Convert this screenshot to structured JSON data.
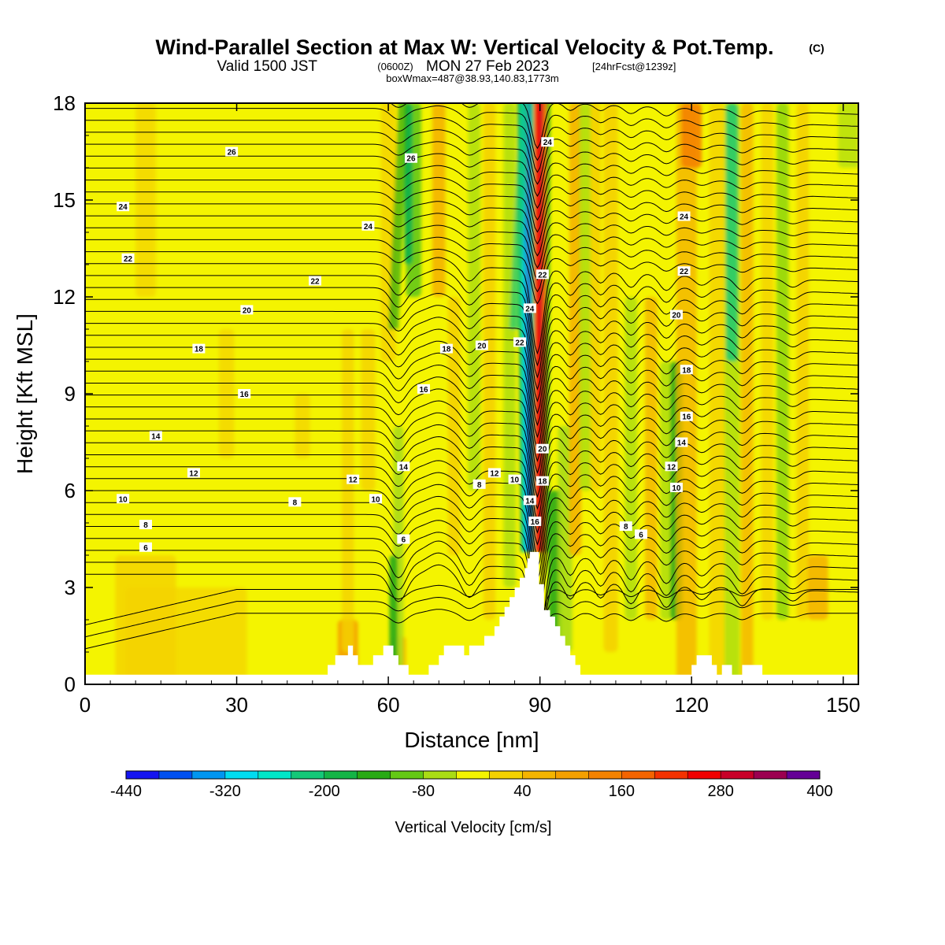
{
  "header": {
    "title": "Wind-Parallel Section at Max W: Vertical Velocity & Pot.Temp.",
    "copyright": "(C)",
    "valid_prefix": "Valid 1500 JST",
    "valid_zulu": "(0600Z)",
    "valid_date": "MON 27 Feb 2023",
    "forecast": "[24hrFcst@1239z]",
    "boxwmax": "boxWmax=487@38.93,140.83,1773m"
  },
  "colors": {
    "background_field": "#f4f400",
    "terrain": "#ffffff",
    "contour": "#000000"
  },
  "chart_data": {
    "type": "heatmap",
    "xlabel": "Distance [nm]",
    "ylabel": "Height [Kft MSL]",
    "xlim": [
      0,
      153
    ],
    "ylim": [
      0,
      18
    ],
    "x_ticks": [
      0,
      30,
      60,
      90,
      120,
      150
    ],
    "x_tick_labels": [
      "0",
      "30",
      "60",
      "90",
      "120",
      "150"
    ],
    "y_ticks": [
      0,
      3,
      6,
      9,
      12,
      15,
      18
    ],
    "y_tick_labels": [
      "0",
      "3",
      "6",
      "9",
      "12",
      "15",
      "18"
    ],
    "colorbar": {
      "title": "Vertical Velocity [cm/s]",
      "min": -440,
      "max": 400,
      "step": 40,
      "labels": [
        "-440",
        "-320",
        "-200",
        "-80",
        "40",
        "160",
        "280",
        "400"
      ],
      "colors": [
        "#1414f0",
        "#0050f0",
        "#0096f0",
        "#00dcf0",
        "#00e6c8",
        "#14c878",
        "#14b446",
        "#28aa14",
        "#64c814",
        "#aadc14",
        "#f4f400",
        "#f4d200",
        "#f4b400",
        "#f4a000",
        "#f48200",
        "#f46400",
        "#f43200",
        "#f00000",
        "#c80028",
        "#9b0050",
        "#640096"
      ]
    },
    "contour_variable": "Potential temperature",
    "contour_labels": [
      {
        "text": "26",
        "x": 29,
        "y": 16.5
      },
      {
        "text": "24",
        "x": 7.5,
        "y": 14.8
      },
      {
        "text": "22",
        "x": 8.5,
        "y": 13.2
      },
      {
        "text": "20",
        "x": 32,
        "y": 11.6
      },
      {
        "text": "18",
        "x": 22.5,
        "y": 10.4
      },
      {
        "text": "16",
        "x": 31.5,
        "y": 9.0
      },
      {
        "text": "14",
        "x": 14,
        "y": 7.7
      },
      {
        "text": "12",
        "x": 21.5,
        "y": 6.55
      },
      {
        "text": "10",
        "x": 7.5,
        "y": 5.75
      },
      {
        "text": "8",
        "x": 12,
        "y": 4.95
      },
      {
        "text": "6",
        "x": 12,
        "y": 4.25
      },
      {
        "text": "8",
        "x": 41.5,
        "y": 5.65
      },
      {
        "text": "26",
        "x": 64.5,
        "y": 16.3
      },
      {
        "text": "24",
        "x": 56,
        "y": 14.2
      },
      {
        "text": "22",
        "x": 45.5,
        "y": 12.5
      },
      {
        "text": "18",
        "x": 71.5,
        "y": 10.4
      },
      {
        "text": "20",
        "x": 78.5,
        "y": 10.5
      },
      {
        "text": "16",
        "x": 67,
        "y": 9.15
      },
      {
        "text": "12",
        "x": 53,
        "y": 6.35
      },
      {
        "text": "14",
        "x": 63,
        "y": 6.75
      },
      {
        "text": "10",
        "x": 57.5,
        "y": 5.75
      },
      {
        "text": "6",
        "x": 63,
        "y": 4.5
      },
      {
        "text": "12",
        "x": 81,
        "y": 6.55
      },
      {
        "text": "8",
        "x": 78,
        "y": 6.2
      },
      {
        "text": "10",
        "x": 85,
        "y": 6.35
      },
      {
        "text": "24",
        "x": 88,
        "y": 11.65
      },
      {
        "text": "22",
        "x": 86,
        "y": 10.6
      },
      {
        "text": "24",
        "x": 91.5,
        "y": 16.8
      },
      {
        "text": "22",
        "x": 90.5,
        "y": 12.7
      },
      {
        "text": "20",
        "x": 90.5,
        "y": 7.3
      },
      {
        "text": "18",
        "x": 90.5,
        "y": 6.3
      },
      {
        "text": "14",
        "x": 88,
        "y": 5.7
      },
      {
        "text": "16",
        "x": 89,
        "y": 5.05
      },
      {
        "text": "24",
        "x": 118.5,
        "y": 14.5
      },
      {
        "text": "22",
        "x": 118.5,
        "y": 12.8
      },
      {
        "text": "20",
        "x": 117,
        "y": 11.45
      },
      {
        "text": "18",
        "x": 119,
        "y": 9.75
      },
      {
        "text": "16",
        "x": 119,
        "y": 8.3
      },
      {
        "text": "14",
        "x": 118,
        "y": 7.5
      },
      {
        "text": "12",
        "x": 116,
        "y": 6.75
      },
      {
        "text": "10",
        "x": 117,
        "y": 6.1
      },
      {
        "text": "8",
        "x": 107,
        "y": 4.9
      },
      {
        "text": "6",
        "x": 110,
        "y": 4.65
      }
    ]
  }
}
